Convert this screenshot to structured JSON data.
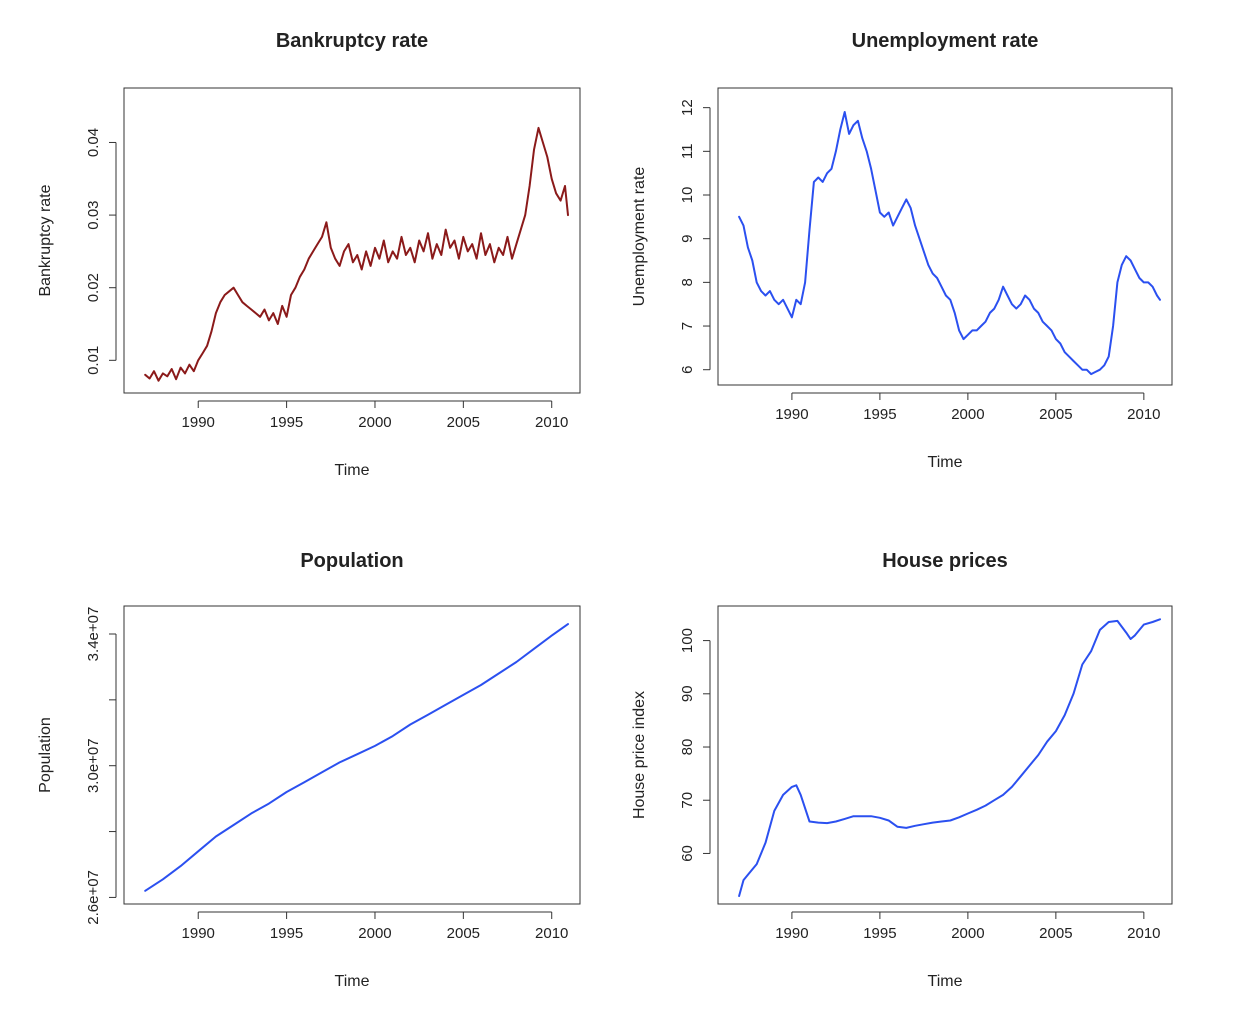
{
  "chart_data": [
    {
      "id": "bankruptcy",
      "type": "line",
      "title": "Bankruptcy rate",
      "xlabel": "Time",
      "ylabel": "Bankruptcy rate",
      "color": "#8b1a1a",
      "xlim": [
        1985.8,
        2011.6
      ],
      "ylim": [
        0.0055,
        0.0475
      ],
      "xticks": [
        1990,
        1995,
        2000,
        2005,
        2010
      ],
      "xtick_labels": [
        "1990",
        "1995",
        "2000",
        "2005",
        "2010"
      ],
      "yticks": [
        0.01,
        0.02,
        0.03,
        0.04
      ],
      "ytick_labels": [
        "0.01",
        "0.02",
        "0.03",
        "0.04"
      ],
      "series": [
        {
          "x": [
            1987.0,
            1987.25,
            1987.5,
            1987.75,
            1988.0,
            1988.25,
            1988.5,
            1988.75,
            1989.0,
            1989.25,
            1989.5,
            1989.75,
            1990.0,
            1990.25,
            1990.5,
            1990.75,
            1991.0,
            1991.25,
            1991.5,
            1991.75,
            1992.0,
            1992.25,
            1992.5,
            1992.75,
            1993.0,
            1993.25,
            1993.5,
            1993.75,
            1994.0,
            1994.25,
            1994.5,
            1994.75,
            1995.0,
            1995.25,
            1995.5,
            1995.75,
            1996.0,
            1996.25,
            1996.5,
            1996.75,
            1997.0,
            1997.25,
            1997.5,
            1997.75,
            1998.0,
            1998.25,
            1998.5,
            1998.75,
            1999.0,
            1999.25,
            1999.5,
            1999.75,
            2000.0,
            2000.25,
            2000.5,
            2000.75,
            2001.0,
            2001.25,
            2001.5,
            2001.75,
            2002.0,
            2002.25,
            2002.5,
            2002.75,
            2003.0,
            2003.25,
            2003.5,
            2003.75,
            2004.0,
            2004.25,
            2004.5,
            2004.75,
            2005.0,
            2005.25,
            2005.5,
            2005.75,
            2006.0,
            2006.25,
            2006.5,
            2006.75,
            2007.0,
            2007.25,
            2007.5,
            2007.75,
            2008.0,
            2008.25,
            2008.5,
            2008.75,
            2009.0,
            2009.25,
            2009.5,
            2009.75,
            2010.0,
            2010.25,
            2010.5,
            2010.75,
            2010.92
          ],
          "y": [
            0.008,
            0.0075,
            0.0085,
            0.0072,
            0.0082,
            0.0078,
            0.0088,
            0.0074,
            0.009,
            0.0082,
            0.0094,
            0.0085,
            0.01,
            0.011,
            0.012,
            0.014,
            0.0165,
            0.018,
            0.019,
            0.0195,
            0.02,
            0.019,
            0.018,
            0.0175,
            0.017,
            0.0165,
            0.016,
            0.017,
            0.0155,
            0.0165,
            0.015,
            0.0175,
            0.016,
            0.019,
            0.02,
            0.0215,
            0.0225,
            0.024,
            0.025,
            0.026,
            0.027,
            0.029,
            0.0255,
            0.024,
            0.023,
            0.025,
            0.026,
            0.0235,
            0.0245,
            0.0225,
            0.025,
            0.023,
            0.0255,
            0.024,
            0.0265,
            0.0235,
            0.025,
            0.024,
            0.027,
            0.0245,
            0.0255,
            0.0235,
            0.0265,
            0.025,
            0.0275,
            0.024,
            0.026,
            0.0245,
            0.028,
            0.0255,
            0.0265,
            0.024,
            0.027,
            0.025,
            0.026,
            0.024,
            0.0275,
            0.0245,
            0.026,
            0.0235,
            0.0255,
            0.0245,
            0.027,
            0.024,
            0.026,
            0.028,
            0.03,
            0.034,
            0.039,
            0.042,
            0.04,
            0.038,
            0.035,
            0.033,
            0.032,
            0.034,
            0.03
          ]
        }
      ]
    },
    {
      "id": "unemployment",
      "type": "line",
      "title": "Unemployment rate",
      "xlabel": "Time",
      "ylabel": "Unemployment rate",
      "color": "#2b50f0",
      "xlim": [
        1985.8,
        2011.6
      ],
      "ylim": [
        5.65,
        12.45
      ],
      "xticks": [
        1990,
        1995,
        2000,
        2005,
        2010
      ],
      "xtick_labels": [
        "1990",
        "1995",
        "2000",
        "2005",
        "2010"
      ],
      "yticks": [
        6,
        7,
        8,
        9,
        10,
        11,
        12
      ],
      "ytick_labels": [
        "6",
        "7",
        "8",
        "9",
        "10",
        "11",
        "12"
      ],
      "series": [
        {
          "x": [
            1987.0,
            1987.25,
            1987.5,
            1987.75,
            1988.0,
            1988.25,
            1988.5,
            1988.75,
            1989.0,
            1989.25,
            1989.5,
            1989.75,
            1990.0,
            1990.25,
            1990.5,
            1990.75,
            1991.0,
            1991.25,
            1991.5,
            1991.75,
            1992.0,
            1992.25,
            1992.5,
            1992.75,
            1993.0,
            1993.25,
            1993.5,
            1993.75,
            1994.0,
            1994.25,
            1994.5,
            1994.75,
            1995.0,
            1995.25,
            1995.5,
            1995.75,
            1996.0,
            1996.25,
            1996.5,
            1996.75,
            1997.0,
            1997.25,
            1997.5,
            1997.75,
            1998.0,
            1998.25,
            1998.5,
            1998.75,
            1999.0,
            1999.25,
            1999.5,
            1999.75,
            2000.0,
            2000.25,
            2000.5,
            2000.75,
            2001.0,
            2001.25,
            2001.5,
            2001.75,
            2002.0,
            2002.25,
            2002.5,
            2002.75,
            2003.0,
            2003.25,
            2003.5,
            2003.75,
            2004.0,
            2004.25,
            2004.5,
            2004.75,
            2005.0,
            2005.25,
            2005.5,
            2005.75,
            2006.0,
            2006.25,
            2006.5,
            2006.75,
            2007.0,
            2007.25,
            2007.5,
            2007.75,
            2008.0,
            2008.25,
            2008.5,
            2008.75,
            2009.0,
            2009.25,
            2009.5,
            2009.75,
            2010.0,
            2010.25,
            2010.5,
            2010.75,
            2010.92
          ],
          "y": [
            9.5,
            9.3,
            8.8,
            8.5,
            8.0,
            7.8,
            7.7,
            7.8,
            7.6,
            7.5,
            7.6,
            7.4,
            7.2,
            7.6,
            7.5,
            8.0,
            9.2,
            10.3,
            10.4,
            10.3,
            10.5,
            10.6,
            11.0,
            11.5,
            11.9,
            11.4,
            11.6,
            11.7,
            11.3,
            11.0,
            10.6,
            10.1,
            9.6,
            9.5,
            9.6,
            9.3,
            9.5,
            9.7,
            9.9,
            9.7,
            9.3,
            9.0,
            8.7,
            8.4,
            8.2,
            8.1,
            7.9,
            7.7,
            7.6,
            7.3,
            6.9,
            6.7,
            6.8,
            6.9,
            6.9,
            7.0,
            7.1,
            7.3,
            7.4,
            7.6,
            7.9,
            7.7,
            7.5,
            7.4,
            7.5,
            7.7,
            7.6,
            7.4,
            7.3,
            7.1,
            7.0,
            6.9,
            6.7,
            6.6,
            6.4,
            6.3,
            6.2,
            6.1,
            6.0,
            6.0,
            5.9,
            5.95,
            6.0,
            6.1,
            6.3,
            7.0,
            8.0,
            8.4,
            8.6,
            8.5,
            8.3,
            8.1,
            8.0,
            8.0,
            7.9,
            7.7,
            7.6
          ]
        }
      ]
    },
    {
      "id": "population",
      "type": "line",
      "title": "Population",
      "xlabel": "Time",
      "ylabel": "Population",
      "color": "#2b50f0",
      "xlim": [
        1985.8,
        2011.6
      ],
      "ylim": [
        25800000,
        34850000
      ],
      "xticks": [
        1990,
        1995,
        2000,
        2005,
        2010
      ],
      "xtick_labels": [
        "1990",
        "1995",
        "2000",
        "2005",
        "2010"
      ],
      "yticks": [
        26000000,
        28000000,
        30000000,
        32000000,
        34000000
      ],
      "ytick_labels": [
        "2.6e+07",
        "",
        "3.0e+07",
        "",
        "3.4e+07"
      ],
      "series": [
        {
          "x": [
            1987.0,
            1988.0,
            1989.0,
            1990.0,
            1991.0,
            1992.0,
            1993.0,
            1994.0,
            1995.0,
            1996.0,
            1997.0,
            1998.0,
            1999.0,
            2000.0,
            2001.0,
            2002.0,
            2003.0,
            2004.0,
            2005.0,
            2006.0,
            2007.0,
            2008.0,
            2009.0,
            2010.0,
            2010.92
          ],
          "y": [
            26200000,
            26550000,
            26950000,
            27400000,
            27850000,
            28200000,
            28550000,
            28850000,
            29200000,
            29500000,
            29800000,
            30100000,
            30350000,
            30600000,
            30900000,
            31250000,
            31550000,
            31850000,
            32150000,
            32450000,
            32800000,
            33150000,
            33550000,
            33950000,
            34300000
          ]
        }
      ]
    },
    {
      "id": "house-prices",
      "type": "line",
      "title": "House prices",
      "xlabel": "Time",
      "ylabel": "House price index",
      "color": "#2b50f0",
      "xlim": [
        1985.8,
        2011.6
      ],
      "ylim": [
        50.5,
        106.5
      ],
      "xticks": [
        1990,
        1995,
        2000,
        2005,
        2010
      ],
      "xtick_labels": [
        "1990",
        "1995",
        "2000",
        "2005",
        "2010"
      ],
      "yticks": [
        60,
        70,
        80,
        90,
        100
      ],
      "ytick_labels": [
        "60",
        "70",
        "80",
        "90",
        "100"
      ],
      "series": [
        {
          "x": [
            1987.0,
            1987.25,
            1987.5,
            1988.0,
            1988.5,
            1989.0,
            1989.5,
            1990.0,
            1990.25,
            1990.5,
            1991.0,
            1991.5,
            1992.0,
            1992.5,
            1993.0,
            1993.5,
            1994.0,
            1994.5,
            1995.0,
            1995.5,
            1996.0,
            1996.5,
            1997.0,
            1997.5,
            1998.0,
            1998.5,
            1999.0,
            1999.5,
            2000.0,
            2000.5,
            2001.0,
            2001.5,
            2002.0,
            2002.5,
            2003.0,
            2003.5,
            2004.0,
            2004.5,
            2005.0,
            2005.5,
            2006.0,
            2006.5,
            2007.0,
            2007.5,
            2008.0,
            2008.5,
            2009.0,
            2009.25,
            2009.5,
            2010.0,
            2010.5,
            2010.92
          ],
          "y": [
            52,
            55,
            56,
            58,
            62,
            68,
            71,
            72.5,
            72.8,
            71,
            66,
            65.8,
            65.7,
            66,
            66.5,
            67,
            67,
            67,
            66.7,
            66.2,
            65,
            64.8,
            65.2,
            65.5,
            65.8,
            66,
            66.2,
            66.8,
            67.5,
            68.2,
            69,
            70,
            71,
            72.5,
            74.5,
            76.5,
            78.5,
            81,
            83,
            86,
            90,
            95.5,
            98,
            102,
            103.5,
            103.7,
            101.5,
            100.3,
            101,
            103,
            103.5,
            104
          ]
        }
      ]
    }
  ]
}
